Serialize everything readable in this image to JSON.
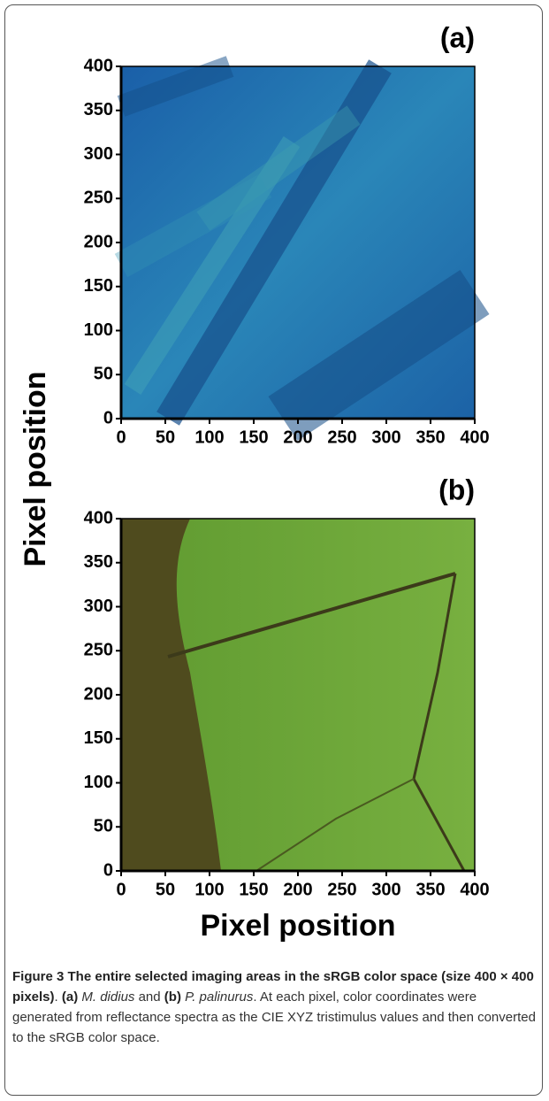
{
  "chart_data": [
    {
      "type": "image",
      "panel_label": "(a)",
      "xlim": [
        0,
        400
      ],
      "ylim": [
        0,
        400
      ],
      "xticks": [
        0,
        50,
        100,
        150,
        200,
        250,
        300,
        350,
        400
      ],
      "yticks": [
        0,
        50,
        100,
        150,
        200,
        250,
        300,
        350,
        400
      ]
    },
    {
      "type": "image",
      "panel_label": "(b)",
      "xlim": [
        0,
        400
      ],
      "ylim": [
        0,
        400
      ],
      "xticks": [
        0,
        50,
        100,
        150,
        200,
        250,
        300,
        350,
        400
      ],
      "yticks": [
        0,
        50,
        100,
        150,
        200,
        250,
        300,
        350,
        400
      ]
    }
  ],
  "axis_labels": {
    "x": "Pixel position",
    "y": "Pixel position"
  },
  "caption": [
    "Figure 3 The entire selected imaging areas in the sRGB color space (size 400 × 400 pixels)",
    ". ",
    "(a)",
    " M. didius",
    " and ",
    "(b)",
    " P. palinurus",
    ". At each pixel, color coordinates were generated from reflectance spectra as the CIE XYZ tristimulus values and then converted to the sRGB color space."
  ]
}
